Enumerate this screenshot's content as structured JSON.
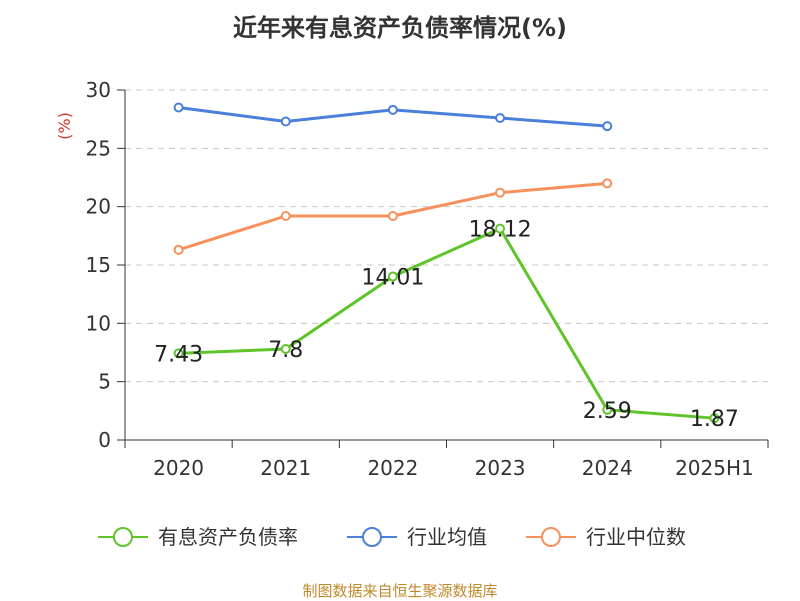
{
  "chart_data": {
    "type": "line",
    "title": "近年来有息资产负债率情况(%)",
    "ylabel": "(%)",
    "ylim": [
      0,
      30
    ],
    "yticks": [
      0,
      5,
      10,
      15,
      20,
      25,
      30
    ],
    "grid": true,
    "legend_position": "bottom",
    "categories": [
      "2020",
      "2021",
      "2022",
      "2023",
      "2024",
      "2025H1"
    ],
    "series": [
      {
        "name": "有息资产负债率",
        "color": "#5ec42a",
        "values": [
          7.43,
          7.8,
          14.01,
          18.12,
          2.59,
          1.87
        ],
        "labels": [
          "7.43",
          "7.8",
          "14.01",
          "18.12",
          "2.59",
          "1.87"
        ]
      },
      {
        "name": "行业均值",
        "color": "#4a7fdc",
        "values": [
          28.5,
          27.3,
          28.3,
          27.6,
          26.9,
          null
        ]
      },
      {
        "name": "行业中位数",
        "color": "#f7905a",
        "values": [
          16.3,
          19.2,
          19.2,
          21.2,
          22.0,
          null
        ]
      }
    ]
  },
  "source": "制图数据来自恒生聚源数据库"
}
